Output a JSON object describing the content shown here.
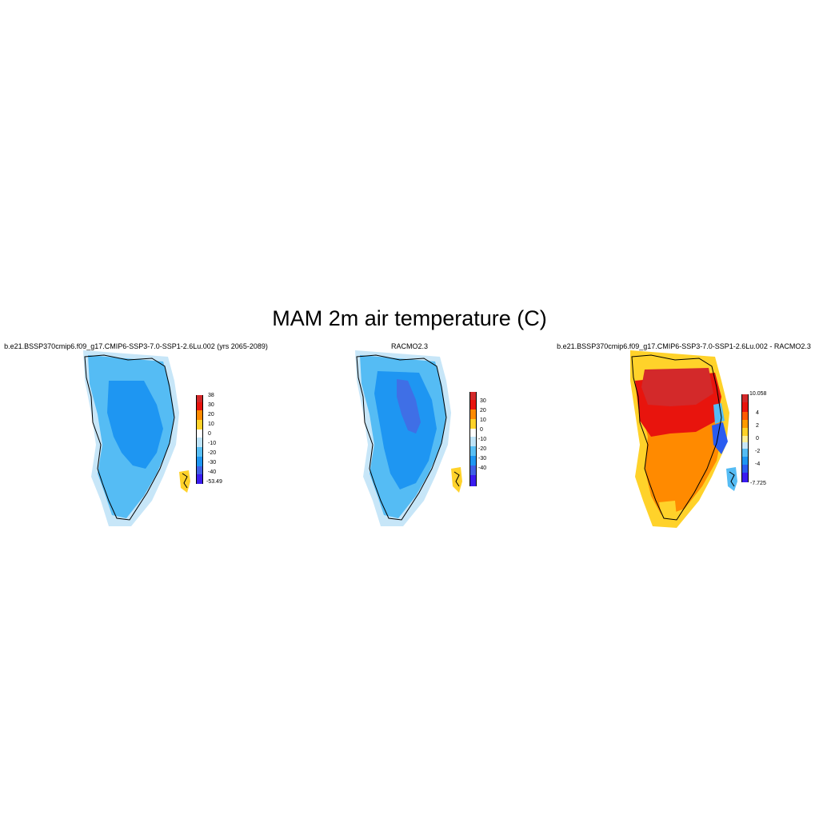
{
  "figure": {
    "title": "MAM 2m air temperature (C)"
  },
  "panels": [
    {
      "title": "b.e21.BSSP370cmip6.f09_g17.CMIP6-SSP3-7.0-SSP1-2.6Lu.002 (yrs 2065-2089)",
      "colorbar": {
        "labels": [
          "38",
          "30",
          "20",
          "10",
          "0",
          "-10",
          "-20",
          "-30",
          "-40",
          "-53.49"
        ],
        "colors": [
          "#d3292a",
          "#e8140d",
          "#ff8a00",
          "#ffd22a",
          "#ffffff",
          "#bfe4f8",
          "#58bff5",
          "#1e96f2",
          "#3f5fe6",
          "#3a1cf0"
        ]
      },
      "field_colors": {
        "coast": "#c7e6f8",
        "margin": "#55bcf4",
        "interior": "#1e96f2",
        "ice_free": "#ffd22a"
      }
    },
    {
      "title": "RACMO2.3",
      "colorbar": {
        "labels": [
          "30",
          "20",
          "10",
          "0",
          "-10",
          "-20",
          "-30",
          "-40"
        ],
        "colors": [
          "#d3292a",
          "#e8140d",
          "#ff8a00",
          "#ffd22a",
          "#ffffff",
          "#bfe4f8",
          "#58bff5",
          "#1e96f2",
          "#3f5fe6",
          "#3a1cf0"
        ]
      },
      "field_colors": {
        "coast": "#c7e6f8",
        "margin": "#55bcf4",
        "interior": "#1e96f2",
        "summit": "#3f6fe6",
        "ice_free": "#ffd22a"
      }
    },
    {
      "title": "b.e21.BSSP370cmip6.f09_g17.CMIP6-SSP3-7.0-SSP1-2.6Lu.002 - RACMO2.3",
      "colorbar": {
        "labels": [
          "10.058",
          "4",
          "2",
          "0",
          "-2",
          "-4",
          "-7.725"
        ],
        "colors": [
          "#d3292a",
          "#e8140d",
          "#ff5a00",
          "#ff9a00",
          "#ffd22a",
          "#fff099",
          "#c7e6f8",
          "#55bcf4",
          "#1e96f2",
          "#2a5cf0",
          "#3a1cf0"
        ]
      },
      "field_colors": {
        "north": "#d3292a",
        "west": "#e8140d",
        "south": "#ff8a00",
        "tip": "#ffd22a",
        "east_cold": "#2a5cf0",
        "east_mid": "#55bcf4"
      }
    }
  ]
}
